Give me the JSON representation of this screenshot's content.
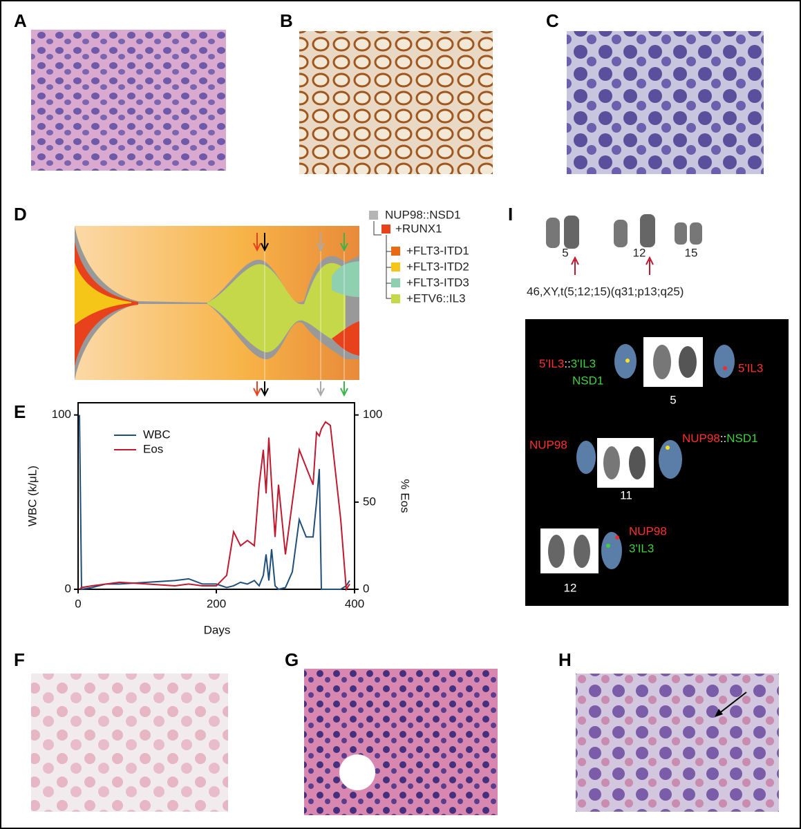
{
  "panel_labels": [
    "A",
    "B",
    "C",
    "D",
    "E",
    "F",
    "G",
    "H",
    "I"
  ],
  "clone_legend": [
    "NUP98::NSD1",
    "+RUNX1",
    "+FLT3-ITD1",
    "+FLT3-ITD2",
    "+FLT3-ITD3",
    "+ETV6::IL3"
  ],
  "karyotype": {
    "chromosomes": [
      "5",
      "12",
      "15"
    ],
    "formula": "46,XY,t(5;12;15)(q31;p13;q25)"
  },
  "fish": {
    "chr5": {
      "left_a": "5'IL3",
      "left_sep": "::",
      "left_b": "3'IL3",
      "left_c": "NSD1",
      "right": "5'IL3",
      "number": "5"
    },
    "chr11": {
      "left": "NUP98",
      "right_a": "NUP98",
      "right_sep": "::",
      "right_b": "NSD1",
      "number": "11"
    },
    "chr12": {
      "right_a": "NUP98",
      "right_b": "3'IL3",
      "number": "12"
    }
  },
  "chart_data": {
    "type": "line",
    "x_label": "Days",
    "y_label": "WBC (k/μL)",
    "y2_label": "% Eos",
    "x": [
      2,
      5,
      20,
      40,
      60,
      100,
      140,
      160,
      180,
      200,
      215,
      225,
      235,
      245,
      255,
      262,
      268,
      272,
      276,
      280,
      285,
      290,
      300,
      310,
      320,
      330,
      340,
      345,
      349,
      352,
      358,
      365,
      380,
      388,
      393
    ],
    "series": [
      {
        "name": "WBC",
        "color": "#1f4e79",
        "values": [
          100,
          0,
          1,
          3,
          3,
          4,
          5,
          6,
          3,
          3,
          1,
          2,
          4,
          3,
          5,
          2,
          8,
          20,
          5,
          23,
          2,
          0,
          1,
          10,
          40,
          30,
          30,
          50,
          69,
          0,
          0,
          0,
          0,
          2,
          5
        ]
      },
      {
        "name": "Eos",
        "color": "#c0182f",
        "axis": "y2",
        "values": [
          0,
          1,
          2,
          3,
          4,
          3,
          2,
          3,
          2,
          2,
          8,
          33,
          25,
          28,
          25,
          60,
          80,
          55,
          87,
          60,
          30,
          60,
          20,
          50,
          80,
          70,
          60,
          90,
          88,
          92,
          96,
          94,
          40,
          0,
          3
        ]
      }
    ],
    "xlim": [
      0,
      400
    ],
    "xticks": [
      0,
      200,
      400
    ],
    "ylim": [
      0,
      107
    ],
    "yticks": [
      0,
      100
    ],
    "y2lim": [
      0,
      107
    ],
    "y2ticks": [
      0,
      50,
      100
    ],
    "grid": false
  }
}
